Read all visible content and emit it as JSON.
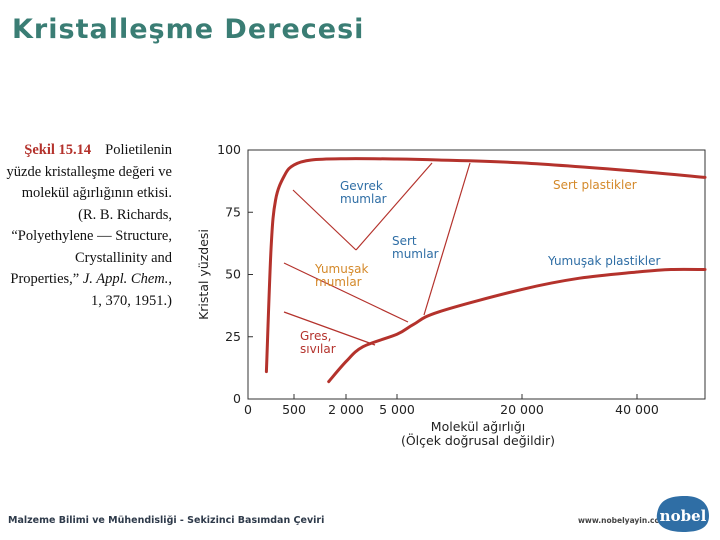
{
  "slide": {
    "title": "Kristalleşme Derecesi",
    "footer": "Malzeme Bilimi ve Mühendisliği - Sekizinci Basımdan Çeviri",
    "website": "www.nobelyayin.com",
    "logo_text": "nobel"
  },
  "caption": {
    "figure_label": "Şekil 15.14",
    "text_1": "Polietilenin yüzde kristalleşme değeri ve molekül ağırlığının etkisi. (R. B. Richards, “Polyethylene — Structure, Crystallinity and Properties,” ",
    "journal": "J. Appl. Chem.",
    "text_2": ", 1, 370, 1951.)"
  },
  "colors": {
    "title": "#3a7d74",
    "figure_label": "#b4322c",
    "curve": "#b4322c",
    "region_label": "#d4892a",
    "region_label_blue": "#2f6ea5",
    "axis": "#333333"
  },
  "chart_data": {
    "type": "line",
    "title": "",
    "xlabel": "Molekül ağırlığı\n(Ölçek doğrusal değildir)",
    "ylabel": "Kristal yüzdesi",
    "x_scale": "nonlinear",
    "x_ticks": [
      "0",
      "500",
      "2 000",
      "5 000",
      "20 000",
      "40 000"
    ],
    "y_ticks": [
      "0",
      "25",
      "50",
      "75",
      "100"
    ],
    "ylim": [
      0,
      100
    ],
    "grid": false,
    "legend": "none",
    "series": [
      {
        "role": "upper-boundary",
        "points": [
          [
            200,
            11
          ],
          [
            250,
            60
          ],
          [
            300,
            80
          ],
          [
            400,
            90
          ],
          [
            500,
            94
          ],
          [
            1000,
            96
          ],
          [
            2000,
            96.5
          ],
          [
            5000,
            96.4
          ],
          [
            10000,
            96
          ],
          [
            20000,
            94.8
          ],
          [
            40000,
            91.5
          ],
          [
            60000,
            89
          ]
        ]
      },
      {
        "role": "lower-boundary",
        "points": [
          [
            1500,
            7
          ],
          [
            2000,
            15
          ],
          [
            3000,
            21
          ],
          [
            5000,
            26
          ],
          [
            7000,
            30
          ],
          [
            10000,
            35
          ],
          [
            20000,
            44
          ],
          [
            30000,
            48.5
          ],
          [
            40000,
            51
          ],
          [
            50000,
            52
          ],
          [
            60000,
            52
          ]
        ]
      }
    ],
    "region_labels": [
      {
        "text": "Gevrek\nmumlar",
        "color": "blue",
        "x": 2000,
        "y": 84
      },
      {
        "text": "Sert plastikler",
        "color": "orange",
        "x": 20000,
        "y": 88
      },
      {
        "text": "Sert\nmumlar",
        "color": "blue",
        "x": 5000,
        "y": 63
      },
      {
        "text": "Yumuşak plastikler",
        "color": "blue",
        "x": 20000,
        "y": 55
      },
      {
        "text": "Yumuşak\nmumlar",
        "color": "orange",
        "x": 2000,
        "y": 49
      },
      {
        "text": "Gres,\nsıvılar",
        "color": "red",
        "x": 800,
        "y": 21
      }
    ]
  }
}
